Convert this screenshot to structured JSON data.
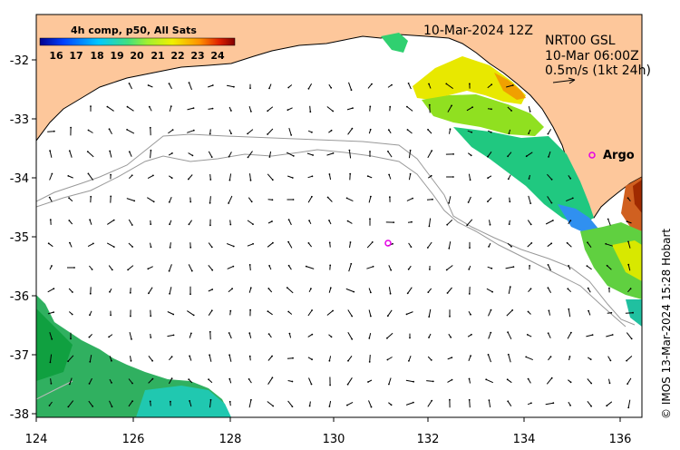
{
  "map": {
    "colorbar_title": "4h comp, p50, All Sats",
    "colorbar_ticks": [
      "16",
      "17",
      "18",
      "19",
      "20",
      "21",
      "22",
      "23",
      "24"
    ],
    "date_label": "10-Mar-2024 12Z",
    "info_line1": "NRT00 GSL",
    "info_line2": "10-Mar 06:00Z",
    "info_line3": "0.5m/s (1kt 24h)",
    "argo_label": "Argo",
    "credit": "© IMOS 13-Mar-2024 15:28 Hobart",
    "x_ticks": [
      "124",
      "126",
      "128",
      "130",
      "132",
      "134",
      "136"
    ],
    "y_ticks": [
      "-32",
      "-33",
      "-34",
      "-35",
      "-36",
      "-37",
      "-38"
    ],
    "land_color": "#fdc79b",
    "ocean_color": "#ffffff",
    "argo_color": "#e600e6"
  }
}
